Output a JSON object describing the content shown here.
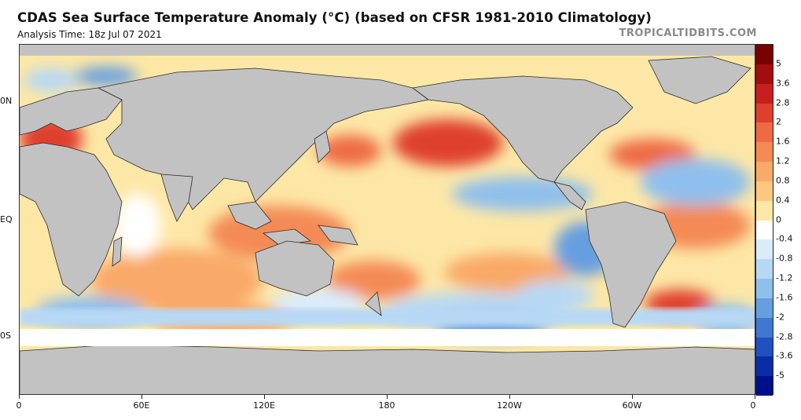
{
  "header": {
    "title": "CDAS Sea Surface Temperature Anomaly (°C) (based on CFSR 1981-2010 Climatology)",
    "subtitle": "Analysis Time: 18z Jul 07 2021",
    "brand": "TROPICALTIDBITS.COM"
  },
  "map": {
    "lat_labels": [
      "0N",
      "EQ",
      "0S"
    ],
    "lon_labels": [
      "0",
      "60E",
      "120E",
      "180",
      "120W",
      "60W",
      "0"
    ],
    "colors": {
      "land": "#c2c2c2",
      "land_border": "#2b2b2b",
      "ocean_warm": "#f4a460",
      "ocean_cool": "#8fbce8",
      "ice_white": "#ffffff"
    }
  },
  "colorbar": {
    "labels": [
      "5",
      "3.6",
      "2.8",
      "2",
      "1.6",
      "1.2",
      "0.8",
      "0.4",
      "0",
      "-0.4",
      "-0.8",
      "-1.2",
      "-1.6",
      "-2",
      "-2.8",
      "-3.6",
      "-5"
    ],
    "colors": [
      "#7a0000",
      "#a40d0d",
      "#c81e1e",
      "#df3f2d",
      "#ee6a45",
      "#f48a54",
      "#f9a968",
      "#fcc77f",
      "#fde7a6",
      "#ffffff",
      "#d9ecfb",
      "#b7d8f4",
      "#8fbfec",
      "#669fe0",
      "#3f78d2",
      "#2150c0",
      "#0a2ca6",
      "#00108a"
    ]
  }
}
